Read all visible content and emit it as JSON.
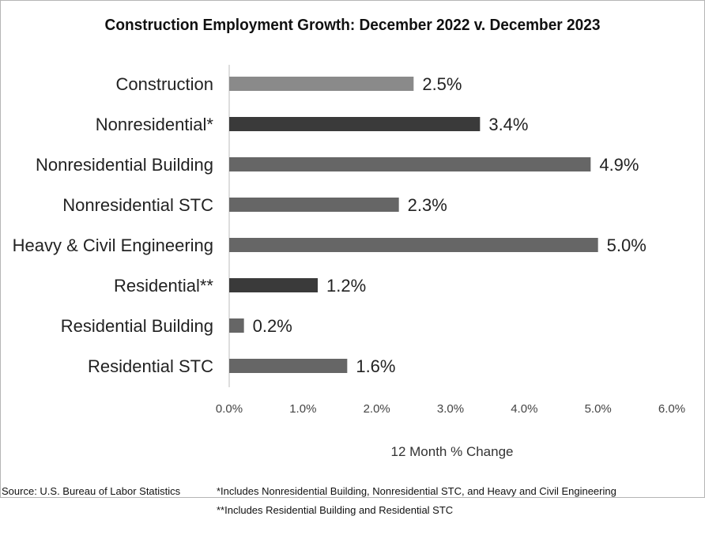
{
  "chart_data": {
    "type": "bar",
    "orientation": "horizontal",
    "title": "Construction Employment Growth: December 2022 v. December 2023",
    "xlabel": "12 Month % Change",
    "ylabel": "",
    "xlim": [
      0,
      6
    ],
    "x_ticks": [
      "0.0%",
      "1.0%",
      "2.0%",
      "3.0%",
      "4.0%",
      "5.0%",
      "6.0%"
    ],
    "grid": false,
    "categories": [
      "Construction",
      "Nonresidential*",
      "Nonresidential Building",
      "Nonresidential STC",
      "Heavy & Civil Engineering",
      "Residential**",
      "Residential Building",
      "Residential STC"
    ],
    "values": [
      2.5,
      3.4,
      4.9,
      2.3,
      5.0,
      1.2,
      0.2,
      1.6
    ],
    "value_labels": [
      "2.5%",
      "3.4%",
      "4.9%",
      "2.3%",
      "5.0%",
      "1.2%",
      "0.2%",
      "1.6%"
    ],
    "bar_colors": [
      "#8a8a8a",
      "#3a3a3a",
      "#666666",
      "#666666",
      "#666666",
      "#3a3a3a",
      "#666666",
      "#666666"
    ]
  },
  "footer": {
    "source": "Source:  U.S. Bureau of Labor Statistics",
    "note1": "*Includes Nonresidential Building, Nonresidential STC, and Heavy and Civil Engineering",
    "note2": "**Includes Residential Building and Residential STC"
  }
}
